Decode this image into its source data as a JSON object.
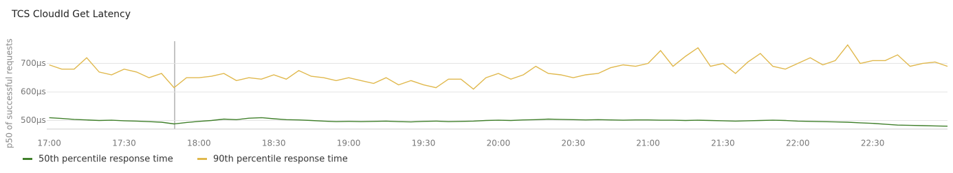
{
  "chart_data": {
    "type": "line",
    "title": "TCS CloudId Get Latency",
    "y_label": "p50 of successful requests",
    "x": [
      "17:00",
      "17:05",
      "17:10",
      "17:15",
      "17:20",
      "17:25",
      "17:30",
      "17:35",
      "17:40",
      "17:45",
      "17:50",
      "17:55",
      "18:00",
      "18:05",
      "18:10",
      "18:15",
      "18:20",
      "18:25",
      "18:30",
      "18:35",
      "18:40",
      "18:45",
      "18:50",
      "18:55",
      "19:00",
      "19:05",
      "19:10",
      "19:15",
      "19:20",
      "19:25",
      "19:30",
      "19:35",
      "19:40",
      "19:45",
      "19:50",
      "19:55",
      "20:00",
      "20:05",
      "20:10",
      "20:15",
      "20:20",
      "20:25",
      "20:30",
      "20:35",
      "20:40",
      "20:45",
      "20:50",
      "20:55",
      "21:00",
      "21:05",
      "21:10",
      "21:15",
      "21:20",
      "21:25",
      "21:30",
      "21:35",
      "21:40",
      "21:45",
      "21:50",
      "21:55",
      "22:00",
      "22:05",
      "22:10",
      "22:15",
      "22:20",
      "22:25",
      "22:30",
      "22:35",
      "22:40",
      "22:45",
      "22:50",
      "22:55",
      "23:00"
    ],
    "series": [
      {
        "name": "50th percentile response time",
        "color": "#3f7f2a",
        "values": [
          510,
          507,
          504,
          502,
          500,
          501,
          499,
          498,
          496,
          494,
          488,
          493,
          497,
          500,
          505,
          503,
          508,
          510,
          506,
          503,
          502,
          500,
          498,
          496,
          497,
          496,
          497,
          498,
          496,
          495,
          497,
          498,
          496,
          497,
          498,
          500,
          501,
          500,
          502,
          503,
          505,
          504,
          503,
          502,
          503,
          502,
          501,
          502,
          502,
          501,
          501,
          500,
          501,
          500,
          499,
          498,
          499,
          500,
          501,
          500,
          498,
          497,
          496,
          495,
          494,
          492,
          490,
          487,
          484,
          483,
          482,
          481,
          480
        ]
      },
      {
        "name": "90th percentile response time",
        "color": "#e0b84c",
        "values": [
          695,
          680,
          680,
          720,
          670,
          660,
          680,
          670,
          650,
          665,
          615,
          650,
          650,
          655,
          665,
          640,
          650,
          645,
          660,
          645,
          675,
          655,
          650,
          640,
          650,
          640,
          630,
          650,
          625,
          640,
          625,
          615,
          645,
          645,
          610,
          650,
          665,
          645,
          660,
          690,
          665,
          660,
          650,
          660,
          665,
          685,
          695,
          690,
          700,
          745,
          690,
          725,
          755,
          690,
          700,
          665,
          705,
          735,
          690,
          680,
          700,
          720,
          695,
          710,
          765,
          700,
          710,
          710,
          730,
          690,
          700,
          705,
          690
        ]
      }
    ],
    "xlim": [
      "16:59",
      "23:00"
    ],
    "xticks": [
      "17:00",
      "17:30",
      "18:00",
      "18:30",
      "19:00",
      "19:30",
      "20:00",
      "20:30",
      "21:00",
      "21:30",
      "22:00",
      "22:30"
    ],
    "ylim": [
      470,
      778
    ],
    "yticks": [
      {
        "value": 500,
        "label": "500µs"
      },
      {
        "value": 600,
        "label": "600µs"
      },
      {
        "value": 700,
        "label": "700µs"
      }
    ],
    "grid": true
  }
}
